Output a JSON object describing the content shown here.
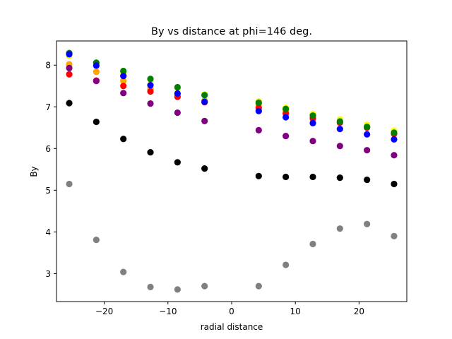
{
  "chart_data": {
    "type": "scatter",
    "title": "By vs distance at phi=146 deg.",
    "xlabel": "radial distance",
    "ylabel": "By",
    "xlim": [
      -27.5,
      27.5
    ],
    "ylim": [
      2.33,
      8.58
    ],
    "xticks": [
      -20,
      -10,
      0,
      10,
      20
    ],
    "yticks": [
      3,
      4,
      5,
      6,
      7,
      8
    ],
    "grid": false,
    "legend": "none",
    "x": [
      -25.5,
      -21.25,
      -17.0,
      -12.75,
      -8.5,
      -4.25,
      4.25,
      8.5,
      12.75,
      17.0,
      21.25,
      25.5
    ],
    "series": [
      {
        "color": "#ffff00",
        "values": [
          8.22,
          8.05,
          7.82,
          7.65,
          7.44,
          7.3,
          7.13,
          6.98,
          6.83,
          6.7,
          6.57,
          6.43
        ]
      },
      {
        "color": "#ffa500",
        "values": [
          8.02,
          7.84,
          7.62,
          7.44,
          7.3,
          7.15,
          7.06,
          6.9,
          6.76,
          6.65,
          6.52,
          6.37
        ]
      },
      {
        "color": "#ff0000",
        "values": [
          7.78,
          7.63,
          7.5,
          7.37,
          7.24,
          7.11,
          6.98,
          6.84,
          6.72,
          6.62,
          6.5,
          6.35
        ]
      },
      {
        "color": "#008000",
        "values": [
          8.29,
          8.06,
          7.86,
          7.67,
          7.47,
          7.28,
          7.1,
          6.95,
          6.79,
          6.65,
          6.52,
          6.38
        ]
      },
      {
        "color": "#0000ff",
        "values": [
          8.26,
          7.99,
          7.74,
          7.52,
          7.32,
          7.12,
          6.9,
          6.75,
          6.61,
          6.47,
          6.34,
          6.22
        ]
      },
      {
        "color": "#800080",
        "values": [
          7.93,
          7.62,
          7.33,
          7.08,
          6.86,
          6.66,
          6.44,
          6.3,
          6.18,
          6.06,
          5.96,
          5.84
        ]
      },
      {
        "color": "#000000",
        "values": [
          7.09,
          6.64,
          6.23,
          5.91,
          5.67,
          5.52,
          5.34,
          5.32,
          5.32,
          5.3,
          5.25,
          5.15
        ]
      },
      {
        "color": "#808080",
        "values": [
          5.15,
          3.81,
          3.04,
          2.68,
          2.62,
          2.7,
          2.7,
          3.21,
          3.71,
          4.08,
          4.19,
          3.9
        ]
      }
    ]
  }
}
